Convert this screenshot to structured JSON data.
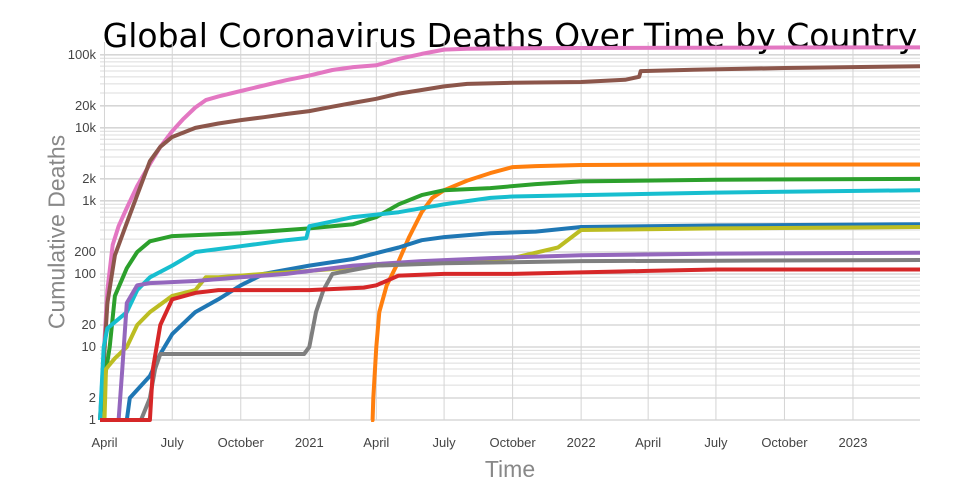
{
  "chart_data": {
    "type": "line",
    "title": "Global Coronavirus Deaths Over Time by Country",
    "xlabel": "Time",
    "ylabel": "Cumulative Deaths",
    "x_scale": "date",
    "y_scale": "log",
    "xlim": [
      "2020-03-26",
      "2023-04-01"
    ],
    "ylim": [
      1,
      150000
    ],
    "grid": true,
    "legend": "none",
    "x_ticks": [
      {
        "date": "2020-04-01",
        "label": "April"
      },
      {
        "date": "2020-07-01",
        "label": "July"
      },
      {
        "date": "2020-10-01",
        "label": "October"
      },
      {
        "date": "2021-01-01",
        "label": "2021"
      },
      {
        "date": "2021-04-01",
        "label": "April"
      },
      {
        "date": "2021-07-01",
        "label": "July"
      },
      {
        "date": "2021-10-01",
        "label": "October"
      },
      {
        "date": "2022-01-01",
        "label": "2022"
      },
      {
        "date": "2022-04-01",
        "label": "April"
      },
      {
        "date": "2022-07-01",
        "label": "July"
      },
      {
        "date": "2022-10-01",
        "label": "October"
      },
      {
        "date": "2023-01-01",
        "label": "2023"
      }
    ],
    "y_ticks": [
      {
        "value": 1,
        "label": "1"
      },
      {
        "value": 2,
        "label": "2"
      },
      {
        "value": 10,
        "label": "10"
      },
      {
        "value": 20,
        "label": "20"
      },
      {
        "value": 100,
        "label": "100"
      },
      {
        "value": 200,
        "label": "200"
      },
      {
        "value": 1000,
        "label": "1k"
      },
      {
        "value": 2000,
        "label": "2k"
      },
      {
        "value": 10000,
        "label": "10k"
      },
      {
        "value": 20000,
        "label": "20k"
      },
      {
        "value": 100000,
        "label": "100k"
      }
    ],
    "series": [
      {
        "color": "#e377c2",
        "points": [
          [
            "2020-03-26",
            1
          ],
          [
            "2020-03-31",
            8
          ],
          [
            "2020-04-05",
            60
          ],
          [
            "2020-04-12",
            250
          ],
          [
            "2020-04-20",
            450
          ],
          [
            "2020-05-01",
            800
          ],
          [
            "2020-05-15",
            1600
          ],
          [
            "2020-06-01",
            3200
          ],
          [
            "2020-06-15",
            5500
          ],
          [
            "2020-07-01",
            9000
          ],
          [
            "2020-07-15",
            13000
          ],
          [
            "2020-08-01",
            19000
          ],
          [
            "2020-08-15",
            24000
          ],
          [
            "2020-09-01",
            27000
          ],
          [
            "2020-10-01",
            32000
          ],
          [
            "2020-11-01",
            38000
          ],
          [
            "2020-12-01",
            45000
          ],
          [
            "2021-01-01",
            52000
          ],
          [
            "2021-02-01",
            62000
          ],
          [
            "2021-03-01",
            68000
          ],
          [
            "2021-04-01",
            72000
          ],
          [
            "2021-05-01",
            88000
          ],
          [
            "2021-06-01",
            103000
          ],
          [
            "2021-07-01",
            118000
          ],
          [
            "2021-08-01",
            121000
          ],
          [
            "2021-10-01",
            123000
          ],
          [
            "2022-01-01",
            124000
          ],
          [
            "2022-06-01",
            125000
          ],
          [
            "2022-10-01",
            126000
          ],
          [
            "2023-04-01",
            126500
          ]
        ]
      },
      {
        "color": "#8c564b",
        "points": [
          [
            "2020-03-26",
            1
          ],
          [
            "2020-03-31",
            6
          ],
          [
            "2020-04-05",
            40
          ],
          [
            "2020-04-15",
            180
          ],
          [
            "2020-05-01",
            500
          ],
          [
            "2020-05-15",
            1200
          ],
          [
            "2020-06-01",
            3500
          ],
          [
            "2020-06-15",
            5500
          ],
          [
            "2020-07-01",
            7500
          ],
          [
            "2020-08-01",
            10000
          ],
          [
            "2020-09-01",
            11500
          ],
          [
            "2020-10-01",
            12800
          ],
          [
            "2020-11-01",
            14000
          ],
          [
            "2020-12-01",
            15500
          ],
          [
            "2021-01-01",
            17000
          ],
          [
            "2021-02-01",
            19500
          ],
          [
            "2021-03-01",
            22000
          ],
          [
            "2021-04-01",
            25000
          ],
          [
            "2021-05-01",
            29500
          ],
          [
            "2021-06-01",
            33000
          ],
          [
            "2021-07-01",
            37000
          ],
          [
            "2021-08-01",
            40000
          ],
          [
            "2021-10-01",
            41500
          ],
          [
            "2022-01-01",
            42500
          ],
          [
            "2022-03-01",
            45500
          ],
          [
            "2022-03-20",
            50000
          ],
          [
            "2022-03-22",
            60000
          ],
          [
            "2022-06-01",
            62500
          ],
          [
            "2022-10-01",
            66000
          ],
          [
            "2023-04-01",
            70000
          ]
        ]
      },
      {
        "color": "#ff7f0e",
        "points": [
          [
            "2021-03-25",
            1
          ],
          [
            "2021-03-27",
            1
          ],
          [
            "2021-03-28",
            2
          ],
          [
            "2021-04-01",
            10
          ],
          [
            "2021-04-05",
            30
          ],
          [
            "2021-04-15",
            70
          ],
          [
            "2021-05-01",
            150
          ],
          [
            "2021-05-15",
            320
          ],
          [
            "2021-06-01",
            700
          ],
          [
            "2021-06-15",
            1100
          ],
          [
            "2021-07-01",
            1400
          ],
          [
            "2021-08-01",
            1900
          ],
          [
            "2021-09-01",
            2400
          ],
          [
            "2021-10-01",
            2900
          ],
          [
            "2021-11-01",
            3000
          ],
          [
            "2022-01-01",
            3100
          ],
          [
            "2022-07-01",
            3150
          ],
          [
            "2023-04-01",
            3150
          ]
        ]
      },
      {
        "color": "#2ca02c",
        "points": [
          [
            "2020-03-26",
            1
          ],
          [
            "2020-03-31",
            3
          ],
          [
            "2020-04-08",
            10
          ],
          [
            "2020-04-15",
            50
          ],
          [
            "2020-05-01",
            120
          ],
          [
            "2020-05-15",
            200
          ],
          [
            "2020-06-01",
            280
          ],
          [
            "2020-07-01",
            330
          ],
          [
            "2020-10-01",
            360
          ],
          [
            "2021-01-01",
            420
          ],
          [
            "2021-03-01",
            480
          ],
          [
            "2021-04-01",
            600
          ],
          [
            "2021-05-01",
            900
          ],
          [
            "2021-06-01",
            1200
          ],
          [
            "2021-07-01",
            1400
          ],
          [
            "2021-09-01",
            1500
          ],
          [
            "2021-11-01",
            1700
          ],
          [
            "2022-01-01",
            1850
          ],
          [
            "2022-07-01",
            1950
          ],
          [
            "2023-04-01",
            2000
          ]
        ]
      },
      {
        "color": "#17becf",
        "points": [
          [
            "2020-03-26",
            1
          ],
          [
            "2020-03-31",
            10
          ],
          [
            "2020-04-05",
            18
          ],
          [
            "2020-05-01",
            30
          ],
          [
            "2020-05-15",
            60
          ],
          [
            "2020-06-01",
            90
          ],
          [
            "2020-07-01",
            130
          ],
          [
            "2020-08-01",
            200
          ],
          [
            "2020-10-01",
            240
          ],
          [
            "2020-12-01",
            290
          ],
          [
            "2020-12-28",
            310
          ],
          [
            "2021-01-01",
            450
          ],
          [
            "2021-03-01",
            600
          ],
          [
            "2021-05-01",
            700
          ],
          [
            "2021-07-01",
            900
          ],
          [
            "2021-09-01",
            1100
          ],
          [
            "2021-10-01",
            1150
          ],
          [
            "2022-01-01",
            1200
          ],
          [
            "2022-07-01",
            1300
          ],
          [
            "2023-04-01",
            1400
          ]
        ]
      },
      {
        "color": "#1f77b4",
        "points": [
          [
            "2020-03-26",
            1
          ],
          [
            "2020-05-01",
            1
          ],
          [
            "2020-05-05",
            2
          ],
          [
            "2020-06-01",
            4
          ],
          [
            "2020-06-15",
            8
          ],
          [
            "2020-07-01",
            15
          ],
          [
            "2020-08-01",
            30
          ],
          [
            "2020-09-01",
            45
          ],
          [
            "2020-10-01",
            70
          ],
          [
            "2020-11-01",
            100
          ],
          [
            "2021-01-01",
            130
          ],
          [
            "2021-03-01",
            160
          ],
          [
            "2021-05-01",
            230
          ],
          [
            "2021-06-01",
            290
          ],
          [
            "2021-07-01",
            320
          ],
          [
            "2021-09-01",
            360
          ],
          [
            "2021-11-01",
            380
          ],
          [
            "2022-01-01",
            440
          ],
          [
            "2022-07-01",
            460
          ],
          [
            "2023-04-01",
            480
          ]
        ]
      },
      {
        "color": "#bcbd22",
        "points": [
          [
            "2020-03-26",
            1
          ],
          [
            "2020-04-01",
            1
          ],
          [
            "2020-04-03",
            5
          ],
          [
            "2020-04-15",
            7
          ],
          [
            "2020-05-01",
            10
          ],
          [
            "2020-05-15",
            20
          ],
          [
            "2020-06-01",
            30
          ],
          [
            "2020-07-01",
            50
          ],
          [
            "2020-08-01",
            60
          ],
          [
            "2020-08-15",
            90
          ],
          [
            "2020-09-01",
            90
          ],
          [
            "2020-10-01",
            95
          ],
          [
            "2020-11-01",
            100
          ],
          [
            "2021-01-01",
            110
          ],
          [
            "2021-04-01",
            130
          ],
          [
            "2021-07-01",
            150
          ],
          [
            "2021-10-01",
            165
          ],
          [
            "2021-12-01",
            230
          ],
          [
            "2022-01-01",
            400
          ],
          [
            "2022-07-01",
            420
          ],
          [
            "2023-04-01",
            440
          ]
        ]
      },
      {
        "color": "#9467bd",
        "points": [
          [
            "2020-03-26",
            1
          ],
          [
            "2020-04-20",
            1
          ],
          [
            "2020-04-25",
            5
          ],
          [
            "2020-05-01",
            40
          ],
          [
            "2020-05-15",
            70
          ],
          [
            "2020-06-01",
            75
          ],
          [
            "2020-08-01",
            80
          ],
          [
            "2020-10-01",
            90
          ],
          [
            "2020-12-01",
            100
          ],
          [
            "2021-03-01",
            130
          ],
          [
            "2021-06-01",
            150
          ],
          [
            "2021-09-01",
            165
          ],
          [
            "2022-01-01",
            180
          ],
          [
            "2022-07-01",
            190
          ],
          [
            "2023-04-01",
            195
          ]
        ]
      },
      {
        "color": "#7f7f7f",
        "points": [
          [
            "2020-03-26",
            1
          ],
          [
            "2020-05-20",
            1
          ],
          [
            "2020-06-01",
            2
          ],
          [
            "2020-06-08",
            5
          ],
          [
            "2020-06-15",
            8
          ],
          [
            "2020-10-01",
            8
          ],
          [
            "2020-12-25",
            8
          ],
          [
            "2021-01-01",
            10
          ],
          [
            "2021-01-10",
            30
          ],
          [
            "2021-01-20",
            60
          ],
          [
            "2021-02-01",
            100
          ],
          [
            "2021-04-01",
            130
          ],
          [
            "2021-07-01",
            140
          ],
          [
            "2021-10-01",
            145
          ],
          [
            "2022-01-01",
            150
          ],
          [
            "2022-07-01",
            152
          ],
          [
            "2023-04-01",
            155
          ]
        ]
      },
      {
        "color": "#d62728",
        "points": [
          [
            "2020-03-26",
            1
          ],
          [
            "2020-06-01",
            1
          ],
          [
            "2020-06-05",
            5
          ],
          [
            "2020-06-15",
            20
          ],
          [
            "2020-07-01",
            45
          ],
          [
            "2020-08-01",
            55
          ],
          [
            "2020-09-01",
            60
          ],
          [
            "2020-10-01",
            60
          ],
          [
            "2021-01-01",
            60
          ],
          [
            "2021-03-15",
            65
          ],
          [
            "2021-04-01",
            70
          ],
          [
            "2021-05-01",
            95
          ],
          [
            "2021-07-01",
            100
          ],
          [
            "2021-10-01",
            100
          ],
          [
            "2022-01-01",
            105
          ],
          [
            "2022-04-01",
            110
          ],
          [
            "2022-07-01",
            115
          ],
          [
            "2023-04-01",
            115
          ]
        ]
      }
    ]
  }
}
